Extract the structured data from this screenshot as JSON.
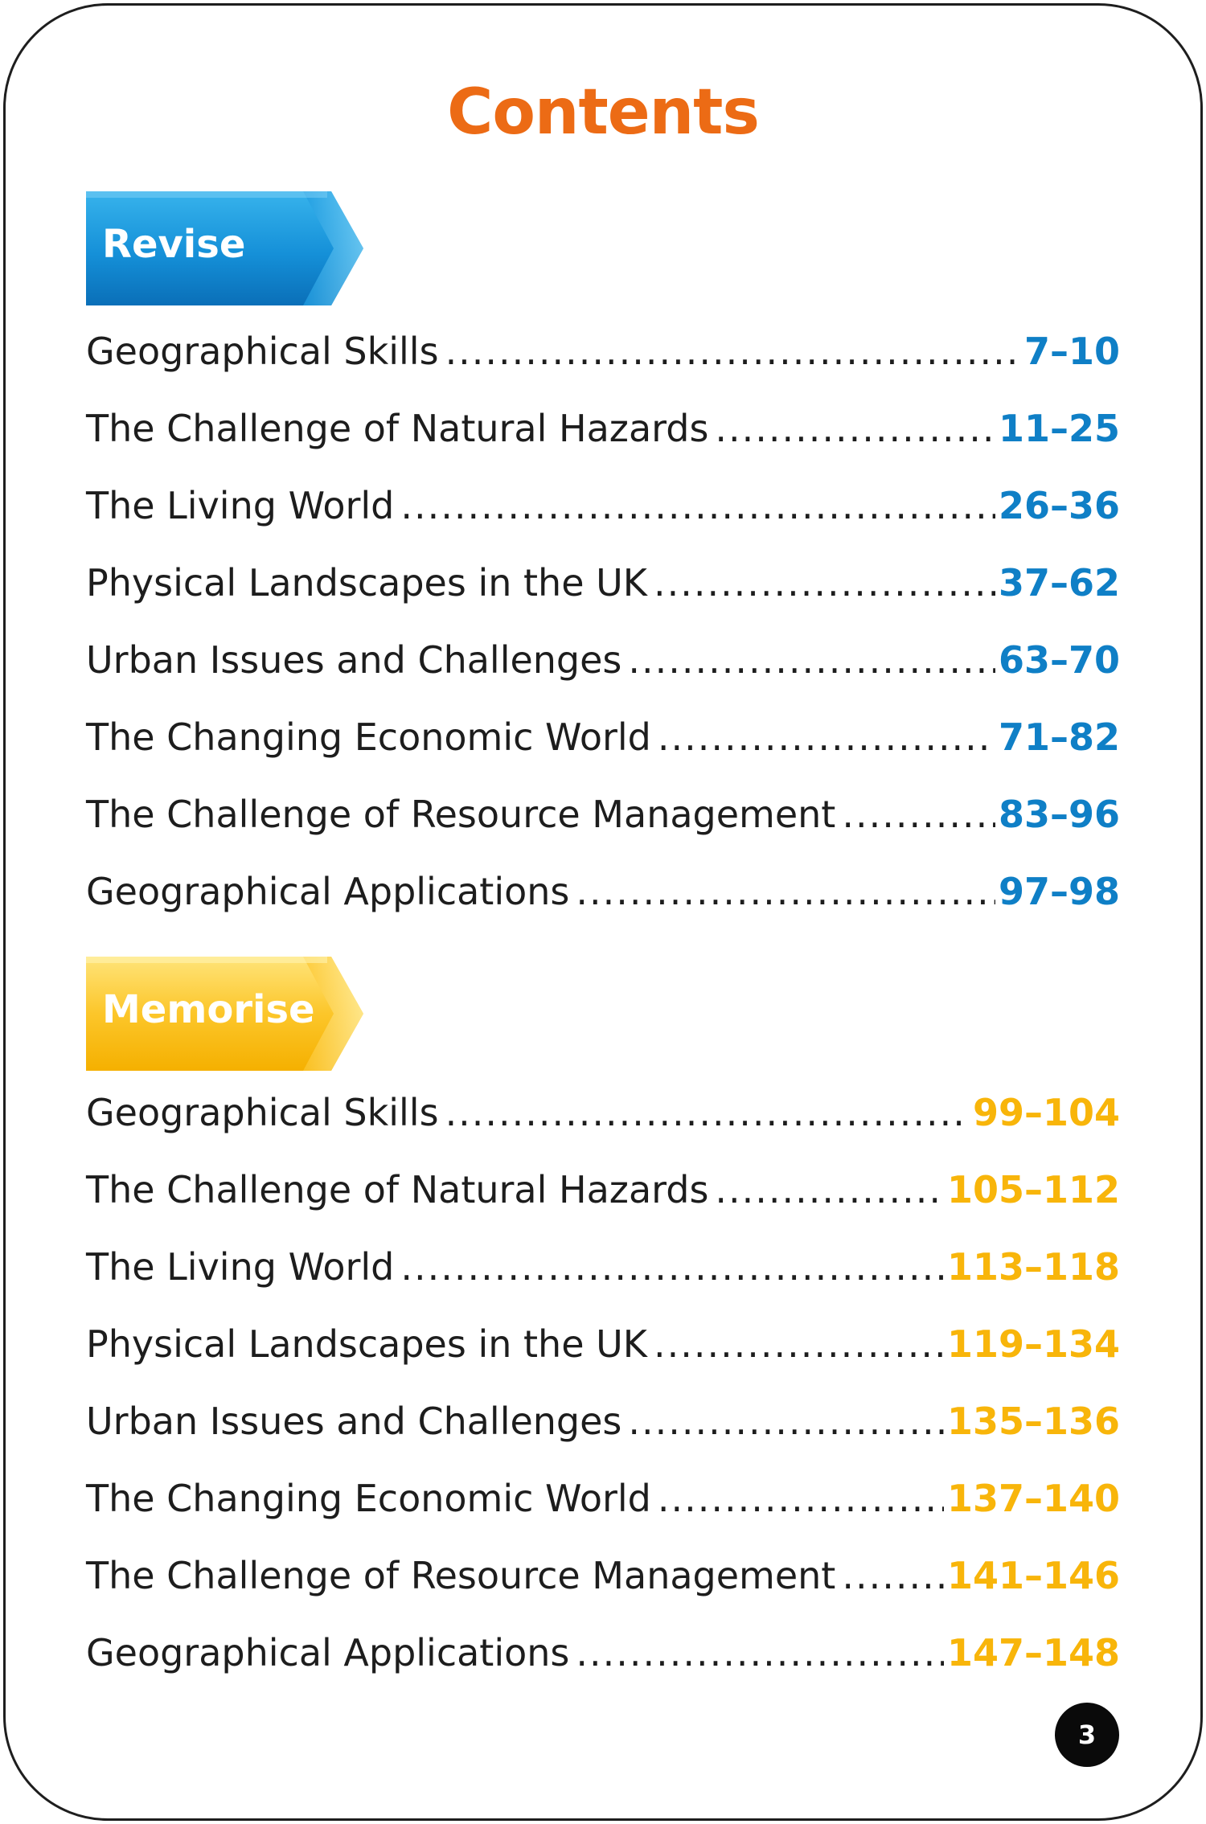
{
  "title": "Contents",
  "colors": {
    "accent": "#ec6b15",
    "revise": "#0f7fc6",
    "memorise": "#f8b50a"
  },
  "sections": {
    "revise": {
      "label": "Revise",
      "entries": [
        {
          "title": "Geographical Skills",
          "pages": "7–10"
        },
        {
          "title": "The Challenge of Natural Hazards",
          "pages": "11–25"
        },
        {
          "title": "The Living World",
          "pages": "26–36"
        },
        {
          "title": "Physical Landscapes in the UK",
          "pages": "37–62"
        },
        {
          "title": "Urban Issues and Challenges",
          "pages": "63–70"
        },
        {
          "title": "The Changing Economic World",
          "pages": "71–82"
        },
        {
          "title": "The Challenge of Resource Management",
          "pages": "83–96"
        },
        {
          "title": "Geographical Applications",
          "pages": "97–98"
        }
      ]
    },
    "memorise": {
      "label": "Memorise",
      "entries": [
        {
          "title": "Geographical Skills",
          "pages": "99–104"
        },
        {
          "title": "The Challenge of Natural Hazards",
          "pages": "105–112"
        },
        {
          "title": "The Living World",
          "pages": "113–118"
        },
        {
          "title": "Physical Landscapes in the UK",
          "pages": "119–134"
        },
        {
          "title": "Urban Issues and Challenges",
          "pages": "135–136"
        },
        {
          "title": "The Changing Economic World",
          "pages": "137–140"
        },
        {
          "title": "The Challenge of Resource Management",
          "pages": "141–146"
        },
        {
          "title": "Geographical Applications",
          "pages": "147–148"
        }
      ]
    }
  },
  "page_number": "3"
}
